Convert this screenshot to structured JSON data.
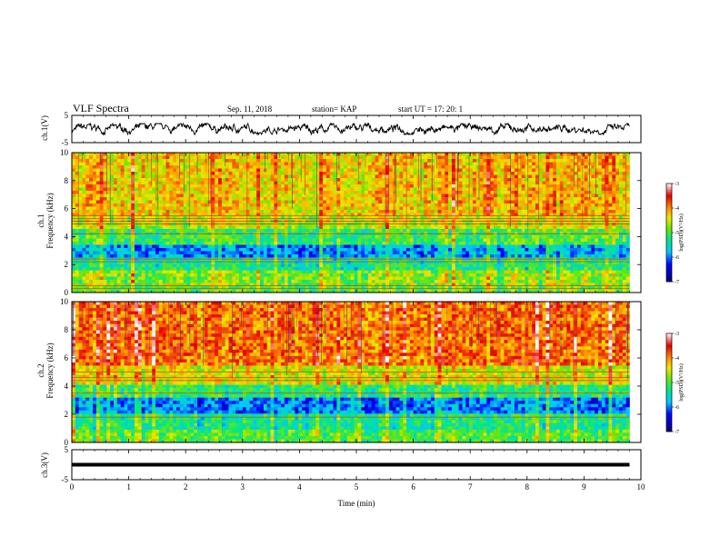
{
  "header": {
    "title": "VLF Spectra",
    "date": "Sep. 11, 2018",
    "station": "station= KAP",
    "start_ut": "start  UT  =   17: 20: 1"
  },
  "axes": {
    "time_label": "Time  (min)",
    "ch1_wave_label": "ch.1(V)",
    "ch1_spec_label_top": "ch.1",
    "ch1_spec_label": "Frequency  (kHz)",
    "ch2_spec_label_top": "ch.2",
    "ch2_spec_label": "Frequency  (kHz)",
    "ch3_wave_label": "ch.3(V)",
    "colorbar_label": "log(PSD)(V²/Hz)"
  },
  "chart_data": [
    {
      "type": "line",
      "name": "ch1-waveform",
      "xlim": [
        0,
        10
      ],
      "ylim": [
        -5,
        5
      ],
      "yticks": [
        -5,
        5
      ],
      "note_values": "noisy trace roughly between -2 and 2 V for t in 0..9.8 min",
      "y_amplitude": 2
    },
    {
      "type": "heatmap",
      "name": "ch1-spectrogram",
      "xlim": [
        0,
        10
      ],
      "ylim": [
        0,
        10
      ],
      "yticks": [
        0,
        2,
        4,
        6,
        8,
        10
      ],
      "data_xmax": 9.8,
      "bands_khz": [
        {
          "from": 0.0,
          "to": 0.5,
          "level": -5.0
        },
        {
          "from": 0.5,
          "to": 1.5,
          "level": -4.8
        },
        {
          "from": 1.5,
          "to": 2.5,
          "level": -5.3
        },
        {
          "from": 2.5,
          "to": 3.5,
          "level": -5.9
        },
        {
          "from": 3.5,
          "to": 4.5,
          "level": -5.1
        },
        {
          "from": 4.5,
          "to": 5.5,
          "level": -4.6
        },
        {
          "from": 5.5,
          "to": 10.0,
          "level": -4.3
        }
      ],
      "lines_khz": [
        0.3,
        0.5,
        2.2,
        2.4,
        4.2,
        4.9,
        5.1,
        5.3,
        5.5
      ],
      "colorbar": {
        "min": -7,
        "max": -3,
        "ticks": [
          -7,
          -6,
          -5,
          -4,
          -3
        ]
      }
    },
    {
      "type": "heatmap",
      "name": "ch2-spectrogram",
      "xlim": [
        0,
        10
      ],
      "ylim": [
        0,
        10
      ],
      "yticks": [
        0,
        2,
        4,
        6,
        8,
        10
      ],
      "data_xmax": 9.8,
      "bands_khz": [
        {
          "from": 0.0,
          "to": 1.0,
          "level": -5.0
        },
        {
          "from": 1.0,
          "to": 2.0,
          "level": -5.3
        },
        {
          "from": 2.0,
          "to": 3.2,
          "level": -6.0
        },
        {
          "from": 3.2,
          "to": 4.2,
          "level": -5.2
        },
        {
          "from": 4.2,
          "to": 5.5,
          "level": -4.5
        },
        {
          "from": 5.5,
          "to": 10.0,
          "level": -3.9
        }
      ],
      "lines_khz": [
        1.8,
        3.5,
        4.4,
        4.6,
        5.0
      ],
      "colorbar": {
        "min": -7,
        "max": -3,
        "ticks": [
          -7,
          -6,
          -5,
          -4,
          -3
        ]
      }
    },
    {
      "type": "line",
      "name": "ch3-waveform",
      "xlim": [
        0,
        10
      ],
      "ylim": [
        -5,
        5
      ],
      "yticks": [
        -5,
        5
      ],
      "constant_value": 0,
      "data_xmax": 9.8
    }
  ],
  "x_ticks": [
    0,
    1,
    2,
    3,
    4,
    5,
    6,
    7,
    8,
    9,
    10
  ]
}
